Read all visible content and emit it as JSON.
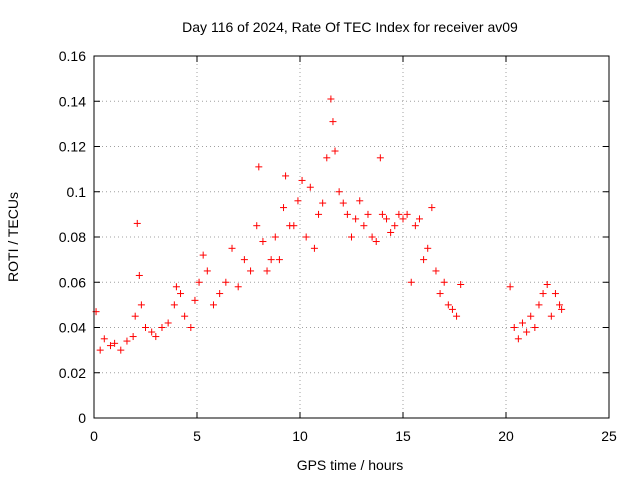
{
  "chart_data": {
    "type": "scatter",
    "title": "Day 116 of 2024, Rate Of TEC Index for receiver av09",
    "xlabel": "GPS time / hours",
    "ylabel": "ROTI / TECUs",
    "xlim": [
      0,
      25
    ],
    "ylim": [
      0,
      0.16
    ],
    "xticks": [
      0,
      5,
      10,
      15,
      20,
      25
    ],
    "yticks": [
      0,
      0.02,
      0.04,
      0.06,
      0.08,
      0.1,
      0.12,
      0.14,
      0.16
    ],
    "grid": true,
    "marker": "+",
    "color": "#ff0000",
    "series": [
      {
        "x": [
          0.1,
          0.3,
          0.5,
          0.8,
          1.0,
          1.3,
          1.6,
          1.9,
          2.0,
          2.1,
          2.2,
          2.3,
          2.5,
          2.8,
          3.0,
          3.3,
          3.6,
          3.9,
          4.0,
          4.2,
          4.4,
          4.7,
          4.9,
          5.1,
          5.3,
          5.5,
          5.8,
          6.1,
          6.4,
          6.7,
          7.0,
          7.3,
          7.6,
          7.9,
          8.0,
          8.2,
          8.4,
          8.6,
          8.8,
          9.0,
          9.2,
          9.3,
          9.5,
          9.7,
          9.9,
          10.1,
          10.3,
          10.5,
          10.7,
          10.9,
          11.1,
          11.3,
          11.5,
          11.6,
          11.7,
          11.9,
          12.1,
          12.3,
          12.5,
          12.7,
          12.9,
          13.1,
          13.3,
          13.5,
          13.7,
          13.9,
          14.0,
          14.2,
          14.4,
          14.6,
          14.8,
          15.0,
          15.2,
          15.4,
          15.6,
          15.8,
          16.0,
          16.2,
          16.4,
          16.6,
          16.8,
          17.0,
          17.2,
          17.4,
          17.6,
          17.8,
          20.2,
          20.4,
          20.6,
          20.8,
          21.0,
          21.2,
          21.4,
          21.6,
          21.8,
          22.0,
          22.2,
          22.4,
          22.6,
          22.7
        ],
        "y": [
          0.047,
          0.03,
          0.035,
          0.032,
          0.033,
          0.03,
          0.034,
          0.036,
          0.045,
          0.086,
          0.063,
          0.05,
          0.04,
          0.038,
          0.036,
          0.04,
          0.042,
          0.05,
          0.058,
          0.055,
          0.045,
          0.04,
          0.052,
          0.06,
          0.072,
          0.065,
          0.05,
          0.055,
          0.06,
          0.075,
          0.058,
          0.07,
          0.065,
          0.085,
          0.111,
          0.078,
          0.065,
          0.07,
          0.08,
          0.07,
          0.093,
          0.107,
          0.085,
          0.085,
          0.096,
          0.105,
          0.08,
          0.102,
          0.075,
          0.09,
          0.095,
          0.115,
          0.141,
          0.131,
          0.118,
          0.1,
          0.095,
          0.09,
          0.08,
          0.088,
          0.096,
          0.085,
          0.09,
          0.08,
          0.078,
          0.115,
          0.09,
          0.088,
          0.082,
          0.085,
          0.09,
          0.088,
          0.09,
          0.06,
          0.085,
          0.088,
          0.07,
          0.075,
          0.093,
          0.065,
          0.055,
          0.06,
          0.05,
          0.048,
          0.045,
          0.059,
          0.058,
          0.04,
          0.035,
          0.042,
          0.038,
          0.045,
          0.04,
          0.05,
          0.055,
          0.059,
          0.045,
          0.055,
          0.05,
          0.048
        ]
      }
    ]
  }
}
